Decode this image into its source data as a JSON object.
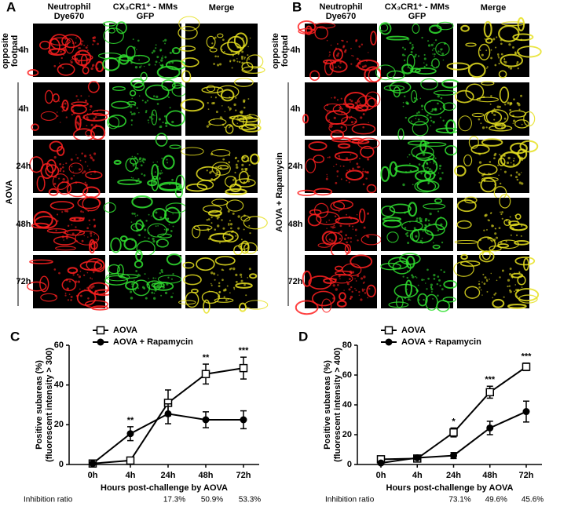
{
  "panels": [
    {
      "label": "A",
      "columns": [
        [
          "Neutrophil",
          "Dye670"
        ],
        [
          "CX₃CR1⁺ - MMs",
          "GFP"
        ],
        [
          "Merge"
        ]
      ],
      "top_group": [
        "opposite",
        "footpad"
      ],
      "group": "AOVA",
      "rows": [
        "4h",
        "4h",
        "24h",
        "48h",
        "72h"
      ]
    },
    {
      "label": "B",
      "columns": [
        [
          "Neutrophil",
          "Dye670"
        ],
        [
          "CX₃CR1⁺ - MMs",
          "GFP"
        ],
        [
          "Merge"
        ]
      ],
      "top_group": [
        "opposite",
        "footpad"
      ],
      "group": "AOVA + Rapamycin",
      "rows": [
        "4h",
        "4h",
        "24h",
        "48h",
        "72h"
      ]
    }
  ],
  "chart_data": [
    {
      "type": "line",
      "panel_label": "C",
      "ylabel": [
        "Positive subareas (%)",
        "(fluorescent intensity > 300)"
      ],
      "xlabel": "Hours post-challenge by AOVA",
      "categories": [
        "0h",
        "4h",
        "24h",
        "48h",
        "72h"
      ],
      "series": [
        {
          "name": "AOVA",
          "color": "#000000",
          "marker": "open-square",
          "values": [
            0.5,
            2,
            31,
            45.5,
            48.5
          ],
          "errors": [
            0,
            0.5,
            6.5,
            5,
            5.5
          ]
        },
        {
          "name": "AOVA + Rapamycin",
          "color": "#000000",
          "marker": "filled-circle",
          "values": [
            0.5,
            15.5,
            25.5,
            22.5,
            22.5
          ],
          "errors": [
            0,
            3.5,
            5,
            4,
            4.5
          ]
        }
      ],
      "annotations": [
        null,
        "**",
        null,
        "**",
        "***"
      ],
      "ratio_label": "Inhibition ratio",
      "ratios": [
        null,
        null,
        "17.3%",
        "50.9%",
        "53.3%"
      ],
      "ylim": [
        0,
        60
      ],
      "yticks": [
        0,
        20,
        40,
        60
      ],
      "legend": "upper left"
    },
    {
      "type": "line",
      "panel_label": "D",
      "ylabel": [
        "Positive subareas (%)",
        "(fluorescent intensity > 400)"
      ],
      "xlabel": "Hours post-challenge by AOVA",
      "categories": [
        "0h",
        "4h",
        "24h",
        "48h",
        "72h"
      ],
      "series": [
        {
          "name": "AOVA",
          "color": "#000000",
          "marker": "open-square",
          "values": [
            3.5,
            4,
            21.5,
            48.5,
            65.5
          ],
          "errors": [
            1,
            0.5,
            3,
            4,
            2.5
          ]
        },
        {
          "name": "AOVA + Rapamycin",
          "color": "#000000",
          "marker": "filled-circle",
          "values": [
            1,
            4.5,
            6,
            24.5,
            35.5
          ],
          "errors": [
            0.5,
            1,
            2,
            4.5,
            7
          ]
        }
      ],
      "annotations": [
        null,
        null,
        "*",
        "***",
        "***"
      ],
      "ratio_label": "Inhibition ratio",
      "ratios": [
        null,
        null,
        "73.1%",
        "49.6%",
        "45.6%"
      ],
      "ylim": [
        0,
        80
      ],
      "yticks": [
        0,
        20,
        40,
        60,
        80
      ],
      "legend": "upper left"
    }
  ]
}
